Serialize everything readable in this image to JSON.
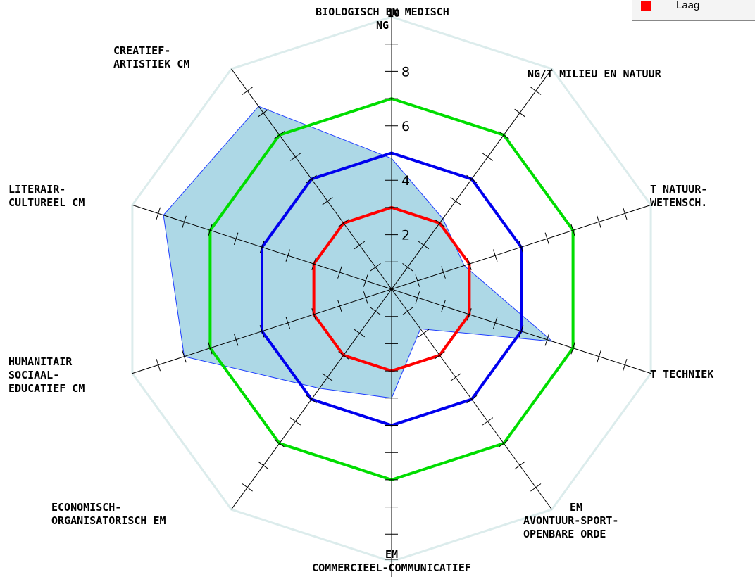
{
  "chart_data": {
    "type": "radar",
    "axes": [
      "BIOLOGISCH EN MEDISCH",
      "MILIEU EN NATUUR",
      "NATUUR-WETENSCH.",
      "TECHNIEK",
      "AVONTUUR-SPORT-OPENBARE ORDE",
      "COMMERCIEEL-COMMUNICATIEF",
      "ECONOMISCH-ORGANISATORISCH",
      "HUMANITAIR SOCIAAL-EDUCATIEF",
      "LITERAIR-CULTUREEL",
      "CREATIEF-ARTISTIEK"
    ],
    "axis_labels": [
      [
        "BIOLOGISCH EN MEDISCH",
        "NG"
      ],
      [
        "NG/T MILIEU EN NATUUR"
      ],
      [
        "T NATUUR-",
        "WETENSCH."
      ],
      [
        "T TECHNIEK"
      ],
      [
        "EM",
        "AVONTUUR-SPORT-",
        "OPENBARE ORDE"
      ],
      [
        "EM",
        "COMMERCIEEL-COMMUNICATIEF"
      ],
      [
        "ECONOMISCH-",
        "ORGANISATORISCH EM"
      ],
      [
        "HUMANITAIR",
        "SOCIAAL-",
        "EDUCATIEF CM"
      ],
      [
        "LITERAIR-",
        "CULTUREEL CM"
      ],
      [
        "CREATIEF-",
        "ARTISTIEK CM"
      ]
    ],
    "rlim": [
      0,
      10
    ],
    "rticks": [
      2,
      4,
      6,
      8
    ],
    "rtick_labels": [
      "2",
      "4",
      "6",
      "8"
    ],
    "stray_tick_label": "10",
    "score": [
      4.8,
      3.2,
      2.8,
      6.2,
      1.8,
      4.0,
      4.5,
      8.0,
      8.8,
      8.3
    ],
    "levels": [
      {
        "value": 3.0,
        "color": "#ff0000"
      },
      {
        "value": 5.0,
        "color": "#0000ee"
      },
      {
        "value": 7.0,
        "color": "#00dd00"
      }
    ],
    "score_fill": "#add8e6",
    "score_stroke": "#1e3cff",
    "frame_color": "#dcecec",
    "legend": [
      {
        "label": "Laag",
        "color": "#ff0000"
      }
    ]
  }
}
